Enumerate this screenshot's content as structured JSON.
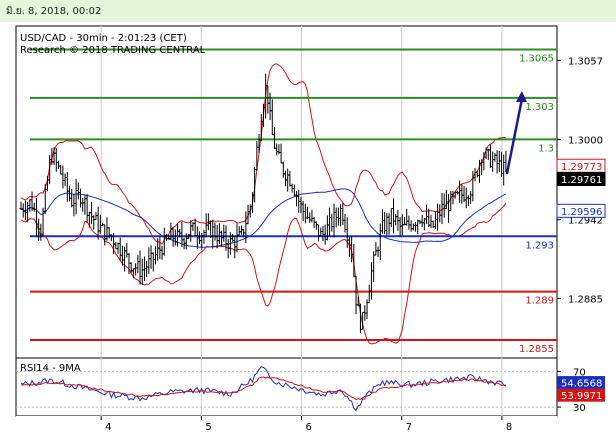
{
  "header": {
    "date_text": "มิ.ย. 8, 2018, 00:02"
  },
  "chart_data": [
    {
      "type": "candlestick",
      "title": "USD/CAD - 30min - 2:01:23 (CET)",
      "subtitle": "Research © 2018 TRADING CENTRAL",
      "ylim": [
        1.2842,
        1.3082
      ],
      "y_ticks": [
        {
          "value": 1.3057,
          "label": "1.3057"
        },
        {
          "value": 1.3,
          "label": "1.3000"
        },
        {
          "value": 1.2942,
          "label": "1.2942"
        },
        {
          "value": 1.2885,
          "label": "1.2885"
        }
      ],
      "x_ticks": [
        {
          "value": 4,
          "label": "4"
        },
        {
          "value": 5,
          "label": "5"
        },
        {
          "value": 6,
          "label": "6"
        },
        {
          "value": 7,
          "label": "7"
        },
        {
          "value": 8,
          "label": "8"
        }
      ],
      "levels": [
        {
          "value": 1.3065,
          "label": "1.3065",
          "color": "#2e8b22"
        },
        {
          "value": 1.303,
          "label": "1.303",
          "color": "#2e8b22"
        },
        {
          "value": 1.3,
          "label": "1.3",
          "color": "#2e8b22"
        },
        {
          "value": 1.293,
          "label": "1.293",
          "color": "#1a2fbf"
        },
        {
          "value": 1.289,
          "label": "1.289",
          "color": "#d21414"
        },
        {
          "value": 1.2855,
          "label": "1.2855",
          "color": "#d21414"
        }
      ],
      "price_tags": [
        {
          "value": 1.2977,
          "label": "1.29773",
          "bg": "#ffffff",
          "fg": "#d21414",
          "border": "#d21414"
        },
        {
          "value": 1.29761,
          "label": "1.29761",
          "bg": "#000000",
          "fg": "#ffffff",
          "border": "#000000"
        },
        {
          "value": 1.29596,
          "label": "1.29596",
          "bg": "#ffffff",
          "fg": "#1a2fbf",
          "border": "#1a2fbf"
        }
      ],
      "forecast_arrow": {
        "from": {
          "x": 8.05,
          "y": 1.2975
        },
        "to": {
          "x": 8.2,
          "y": 1.3035
        },
        "color": "#1a1a8c"
      },
      "colors": {
        "candle": "#000000",
        "bollinger": "#d21414",
        "moving_average": "#1a2fbf",
        "grid": "#cccccc"
      },
      "x_range": [
        3.15,
        8.55
      ],
      "series": [
        {
          "name": "price",
          "points": [
            [
              3.2,
              1.295
            ],
            [
              3.3,
              1.2955
            ],
            [
              3.4,
              1.2935
            ],
            [
              3.5,
              1.299
            ],
            [
              3.6,
              1.2975
            ],
            [
              3.7,
              1.2955
            ],
            [
              3.8,
              1.296
            ],
            [
              3.9,
              1.2945
            ],
            [
              4.0,
              1.2935
            ],
            [
              4.1,
              1.293
            ],
            [
              4.2,
              1.292
            ],
            [
              4.3,
              1.291
            ],
            [
              4.4,
              1.2905
            ],
            [
              4.5,
              1.2912
            ],
            [
              4.6,
              1.2922
            ],
            [
              4.7,
              1.293
            ],
            [
              4.8,
              1.2928
            ],
            [
              4.9,
              1.2935
            ],
            [
              5.0,
              1.2932
            ],
            [
              5.1,
              1.2935
            ],
            [
              5.2,
              1.2928
            ],
            [
              5.3,
              1.2925
            ],
            [
              5.4,
              1.293
            ],
            [
              5.5,
              1.2955
            ],
            [
              5.55,
              1.299
            ],
            [
              5.6,
              1.302
            ],
            [
              5.65,
              1.304
            ],
            [
              5.7,
              1.3005
            ],
            [
              5.75,
              1.299
            ],
            [
              5.8,
              1.298
            ],
            [
              5.9,
              1.297
            ],
            [
              6.0,
              1.295
            ],
            [
              6.1,
              1.294
            ],
            [
              6.2,
              1.293
            ],
            [
              6.3,
              1.294
            ],
            [
              6.4,
              1.295
            ],
            [
              6.5,
              1.292
            ],
            [
              6.55,
              1.288
            ],
            [
              6.6,
              1.2865
            ],
            [
              6.7,
              1.2905
            ],
            [
              6.8,
              1.2935
            ],
            [
              6.9,
              1.2945
            ],
            [
              7.0,
              1.2935
            ],
            [
              7.1,
              1.294
            ],
            [
              7.2,
              1.2945
            ],
            [
              7.3,
              1.2935
            ],
            [
              7.4,
              1.295
            ],
            [
              7.5,
              1.2955
            ],
            [
              7.6,
              1.296
            ],
            [
              7.7,
              1.2965
            ],
            [
              7.8,
              1.299
            ],
            [
              7.9,
              1.2985
            ],
            [
              8.0,
              1.298
            ],
            [
              8.05,
              1.2975
            ]
          ]
        }
      ]
    },
    {
      "type": "line",
      "title": "RSI14 - 9MA",
      "ylim": [
        20,
        85
      ],
      "y_ticks": [
        {
          "value": 70,
          "label": "70"
        },
        {
          "value": 30,
          "label": "30"
        }
      ],
      "price_tags": [
        {
          "value": 54.6568,
          "label": "54.6568",
          "bg": "#1a2fbf",
          "fg": "#ffffff"
        },
        {
          "value": 53.9971,
          "label": "53.9971",
          "bg": "#d21414",
          "fg": "#ffffff"
        }
      ],
      "series": [
        {
          "name": "RSI14",
          "points": [
            [
              3.2,
              55
            ],
            [
              3.5,
              60
            ],
            [
              3.8,
              52
            ],
            [
              4.1,
              44
            ],
            [
              4.4,
              40
            ],
            [
              4.7,
              47
            ],
            [
              5.0,
              49
            ],
            [
              5.3,
              45
            ],
            [
              5.5,
              60
            ],
            [
              5.6,
              74
            ],
            [
              5.75,
              58
            ],
            [
              6.0,
              50
            ],
            [
              6.2,
              44
            ],
            [
              6.4,
              50
            ],
            [
              6.55,
              28
            ],
            [
              6.65,
              43
            ],
            [
              6.8,
              58
            ],
            [
              7.1,
              55
            ],
            [
              7.4,
              60
            ],
            [
              7.7,
              63
            ],
            [
              8.05,
              55
            ]
          ]
        },
        {
          "name": "9MA",
          "points": [
            [
              3.2,
              54
            ],
            [
              3.5,
              57
            ],
            [
              3.8,
              54
            ],
            [
              4.1,
              47
            ],
            [
              4.4,
              42
            ],
            [
              4.7,
              45
            ],
            [
              5.0,
              48
            ],
            [
              5.3,
              46
            ],
            [
              5.5,
              54
            ],
            [
              5.6,
              64
            ],
            [
              5.75,
              62
            ],
            [
              6.0,
              54
            ],
            [
              6.2,
              47
            ],
            [
              6.4,
              48
            ],
            [
              6.55,
              38
            ],
            [
              6.65,
              42
            ],
            [
              6.8,
              51
            ],
            [
              7.1,
              55
            ],
            [
              7.4,
              58
            ],
            [
              7.7,
              61
            ],
            [
              8.05,
              54
            ]
          ]
        }
      ]
    }
  ]
}
